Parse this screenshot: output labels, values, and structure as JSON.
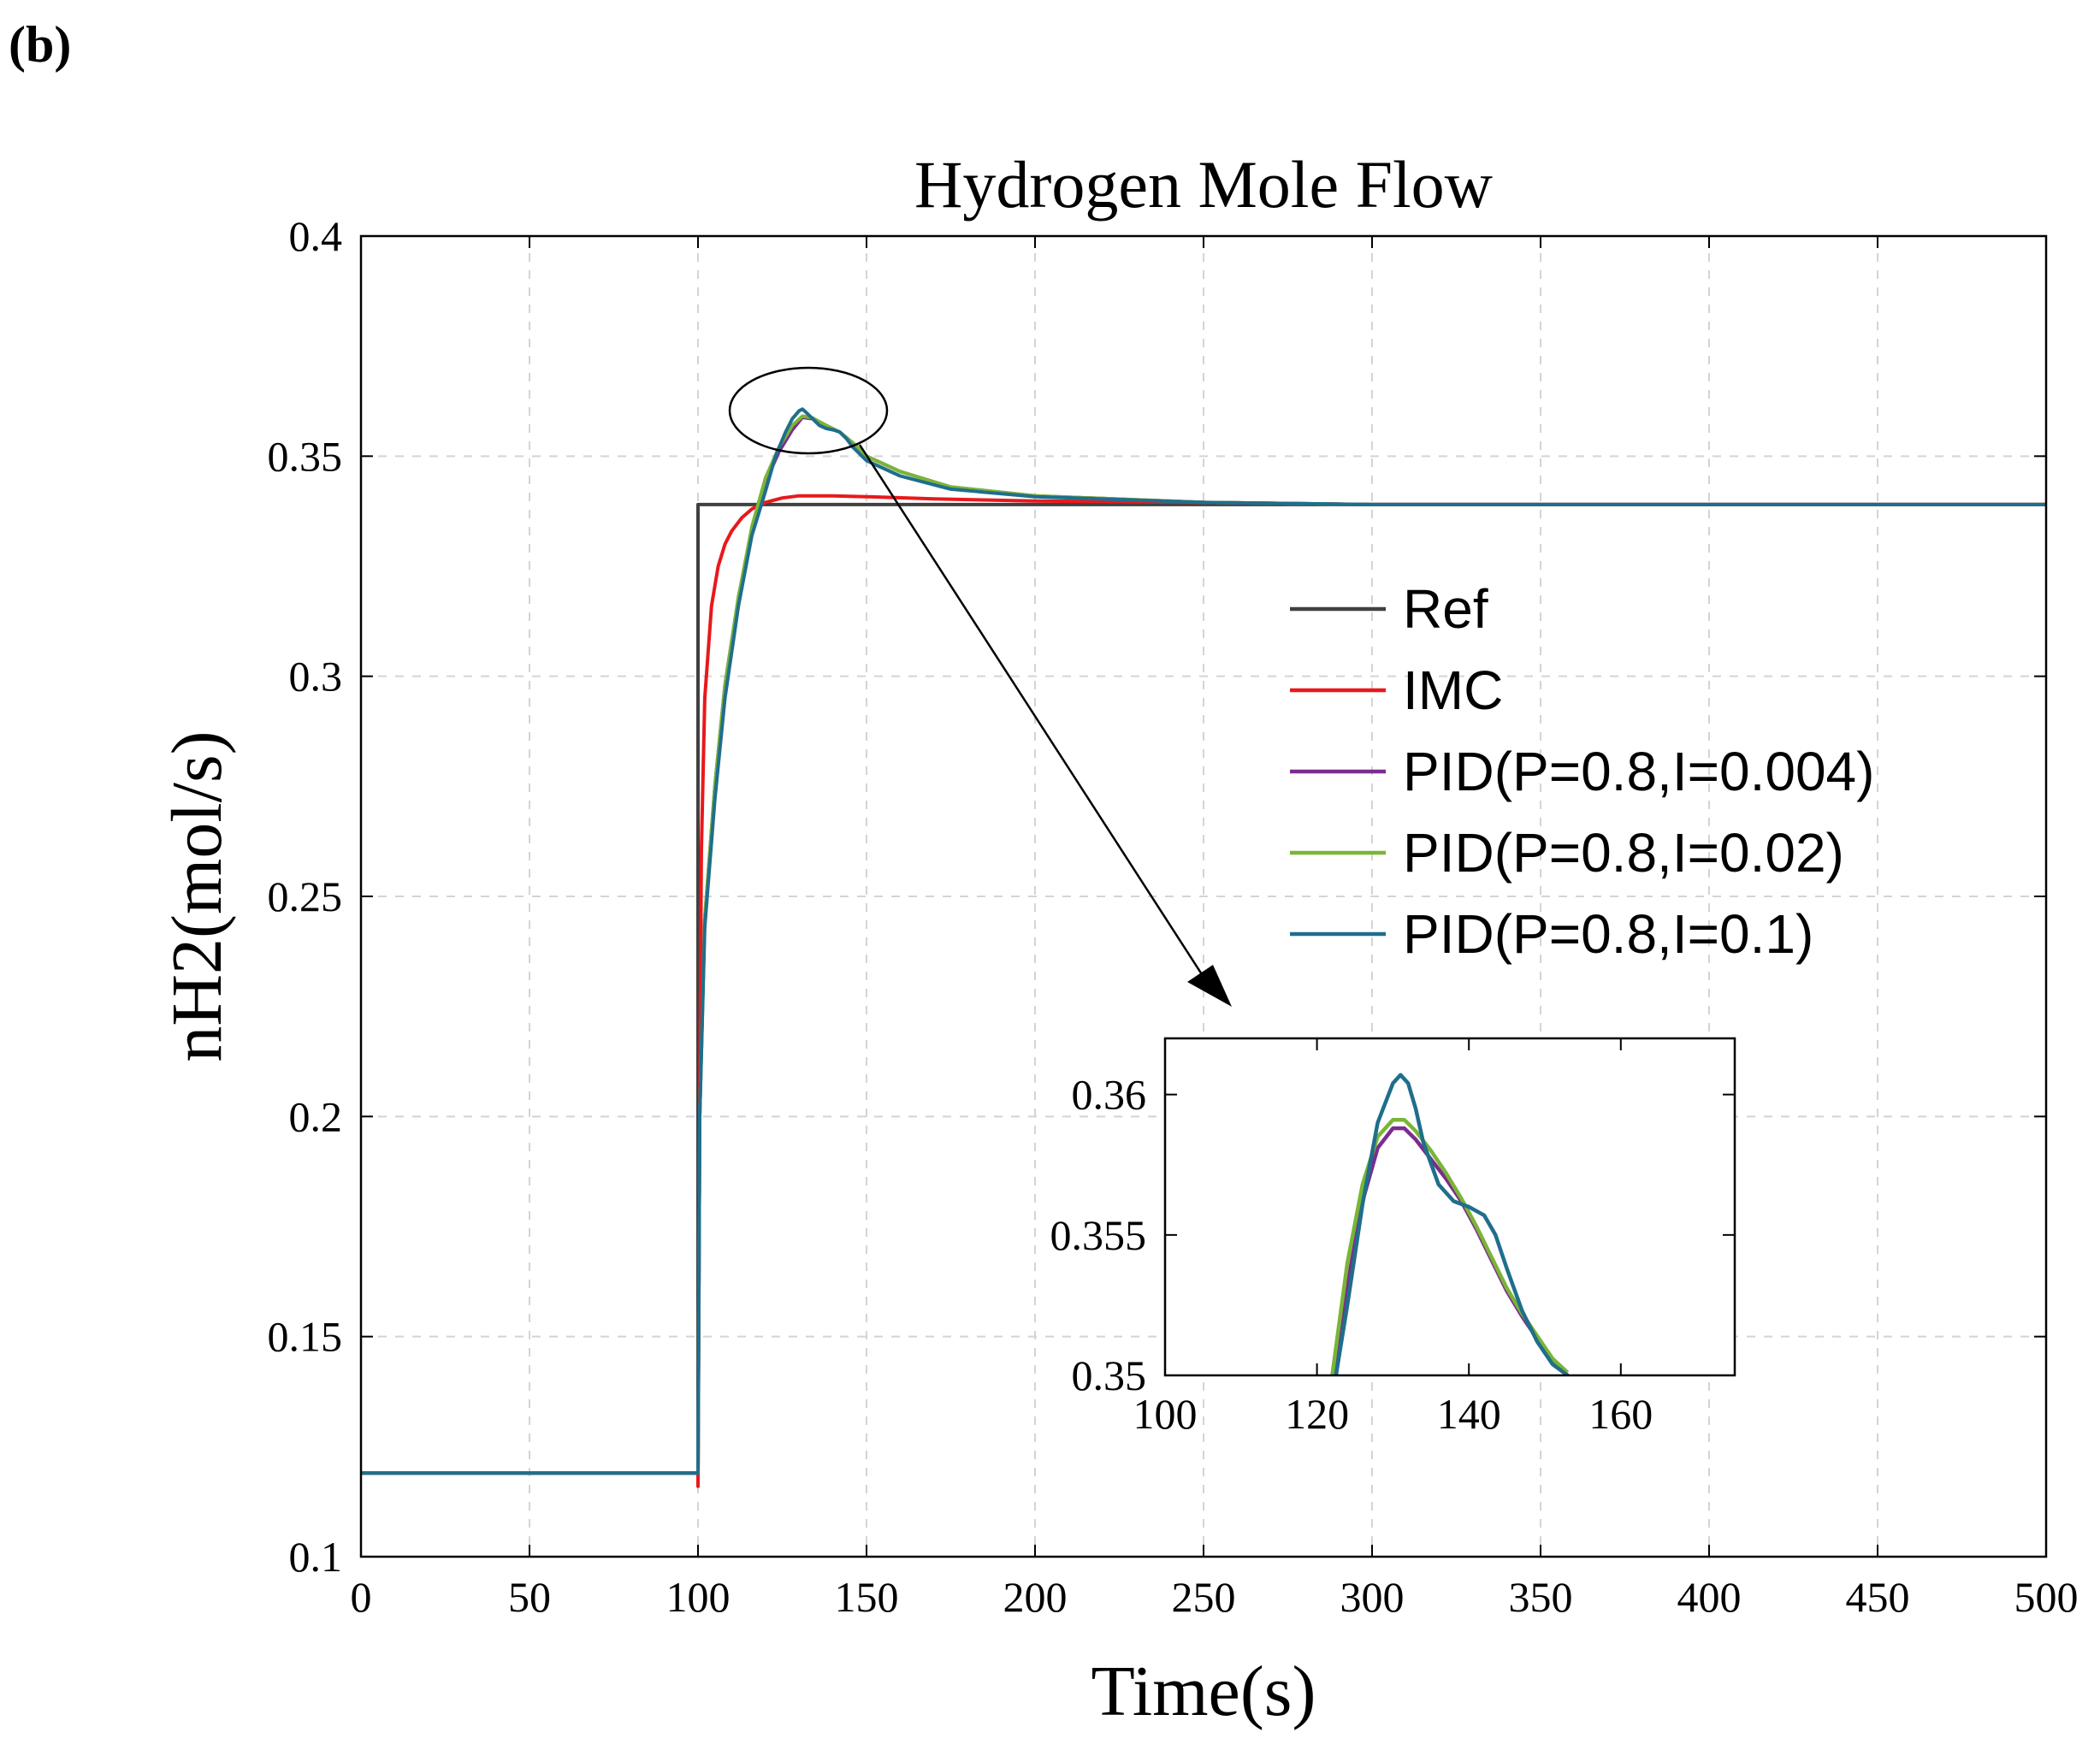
{
  "panel_label": "(b)",
  "colors": {
    "Ref": "#404040",
    "IMC": "#e8191c",
    "PID1": "#7b2d8e",
    "PID2": "#7ab536",
    "PID3": "#1f6e8c"
  },
  "chart_data": {
    "type": "line",
    "title": "Hydrogen Mole Flow",
    "xlabel": "Time(s)",
    "ylabel": "nH2(mol/s)",
    "xlim": [
      0,
      500
    ],
    "ylim": [
      0.1,
      0.4
    ],
    "xticks": [
      0,
      50,
      100,
      150,
      200,
      250,
      300,
      350,
      400,
      450,
      500
    ],
    "yticks": [
      0.1,
      0.15,
      0.2,
      0.25,
      0.3,
      0.35,
      0.4
    ],
    "xtick_labels": [
      "0",
      "50",
      "100",
      "150",
      "200",
      "250",
      "300",
      "350",
      "400",
      "450",
      "500"
    ],
    "ytick_labels": [
      "0.1",
      "0.15",
      "0.2",
      "0.25",
      "0.3",
      "0.35",
      "0.4"
    ],
    "grid": true,
    "legend_position": "center-right",
    "series": [
      {
        "name": "Ref",
        "color_key": "Ref",
        "x": [
          0,
          100,
          100,
          500
        ],
        "y": [
          0.119,
          0.119,
          0.339,
          0.339
        ]
      },
      {
        "name": "IMC",
        "color_key": "IMC",
        "x": [
          0,
          100,
          100,
          100.5,
          101,
          102,
          104,
          106,
          108,
          110,
          113,
          116,
          120,
          125,
          130,
          135,
          140,
          150,
          170,
          200,
          250,
          300,
          500
        ],
        "y": [
          0.119,
          0.119,
          0.116,
          0.2,
          0.26,
          0.295,
          0.316,
          0.325,
          0.33,
          0.333,
          0.336,
          0.338,
          0.3395,
          0.3405,
          0.341,
          0.341,
          0.341,
          0.3408,
          0.3403,
          0.3398,
          0.3395,
          0.339,
          0.339
        ]
      },
      {
        "name": "PID(P=0.8,I=0.004)",
        "color_key": "PID1",
        "x": [
          0,
          100,
          100.5,
          102,
          105,
          108,
          112,
          116,
          120,
          124,
          128,
          131,
          134,
          138,
          142,
          146,
          150,
          160,
          175,
          200,
          250,
          300,
          500
        ],
        "y": [
          0.119,
          0.119,
          0.2,
          0.245,
          0.275,
          0.298,
          0.318,
          0.333,
          0.344,
          0.351,
          0.356,
          0.3588,
          0.3585,
          0.357,
          0.3555,
          0.353,
          0.35,
          0.3465,
          0.343,
          0.341,
          0.3395,
          0.339,
          0.339
        ]
      },
      {
        "name": "PID(P=0.8,I=0.02)",
        "color_key": "PID2",
        "x": [
          0,
          100,
          100.5,
          102,
          105,
          108,
          112,
          116,
          120,
          124,
          128,
          131,
          134,
          138,
          142,
          146,
          150,
          160,
          175,
          200,
          250,
          300,
          500
        ],
        "y": [
          0.119,
          0.119,
          0.2,
          0.245,
          0.275,
          0.298,
          0.318,
          0.334,
          0.345,
          0.352,
          0.357,
          0.3591,
          0.3587,
          0.357,
          0.3555,
          0.353,
          0.35,
          0.3465,
          0.343,
          0.341,
          0.3395,
          0.339,
          0.339
        ]
      },
      {
        "name": "PID(P=0.8,I=0.1)",
        "color_key": "PID3",
        "x": [
          0,
          100,
          100.5,
          102,
          105,
          108,
          112,
          116,
          120,
          123,
          126,
          128,
          130,
          131,
          132,
          134,
          136,
          138,
          140,
          142,
          144,
          146,
          150,
          160,
          175,
          200,
          250,
          300,
          500
        ],
        "y": [
          0.119,
          0.119,
          0.2,
          0.243,
          0.272,
          0.295,
          0.316,
          0.332,
          0.342,
          0.35,
          0.3555,
          0.3585,
          0.3603,
          0.3607,
          0.36,
          0.3585,
          0.357,
          0.3563,
          0.356,
          0.3555,
          0.354,
          0.352,
          0.349,
          0.3455,
          0.3425,
          0.3408,
          0.3395,
          0.339,
          0.339
        ]
      }
    ],
    "inset": {
      "xlim": [
        100,
        175
      ],
      "ylim": [
        0.35,
        0.362
      ],
      "xticks": [
        100,
        120,
        140,
        160
      ],
      "yticks": [
        0.35,
        0.355,
        0.36
      ],
      "xtick_labels": [
        "100",
        "120",
        "140",
        "160"
      ],
      "ytick_labels": [
        "0.35",
        "0.355",
        "0.36"
      ],
      "series": [
        {
          "name": "PID(P=0.8,I=0.004)",
          "color_key": "PID1",
          "x": [
            122.5,
            124,
            126,
            128,
            130,
            131.5,
            133,
            135,
            137,
            139,
            141,
            143,
            145,
            147,
            149,
            151,
            153
          ],
          "y": [
            0.35,
            0.3532,
            0.3562,
            0.3581,
            0.3588,
            0.3588,
            0.3584,
            0.3577,
            0.357,
            0.3562,
            0.3552,
            0.3541,
            0.353,
            0.3521,
            0.3513,
            0.3505,
            0.35
          ]
        },
        {
          "name": "PID(P=0.8,I=0.02)",
          "color_key": "PID2",
          "x": [
            122,
            124,
            126,
            128,
            130,
            131.5,
            133,
            135,
            137,
            139,
            141,
            143,
            145,
            147,
            149,
            151,
            153
          ],
          "y": [
            0.35,
            0.354,
            0.3568,
            0.3585,
            0.3591,
            0.3591,
            0.3587,
            0.358,
            0.3572,
            0.3563,
            0.3553,
            0.3542,
            0.3531,
            0.3522,
            0.3514,
            0.3506,
            0.3501
          ]
        },
        {
          "name": "PID(P=0.8,I=0.1)",
          "color_key": "PID3",
          "x": [
            122.5,
            124,
            126,
            128,
            130,
            131,
            132,
            133,
            134,
            136,
            138,
            140,
            142,
            143.5,
            145,
            147,
            149,
            151,
            153
          ],
          "y": [
            0.35,
            0.3525,
            0.3561,
            0.359,
            0.3604,
            0.3607,
            0.3604,
            0.3595,
            0.3583,
            0.3568,
            0.3562,
            0.356,
            0.3557,
            0.355,
            0.3538,
            0.3523,
            0.3512,
            0.3504,
            0.35
          ]
        }
      ]
    }
  }
}
